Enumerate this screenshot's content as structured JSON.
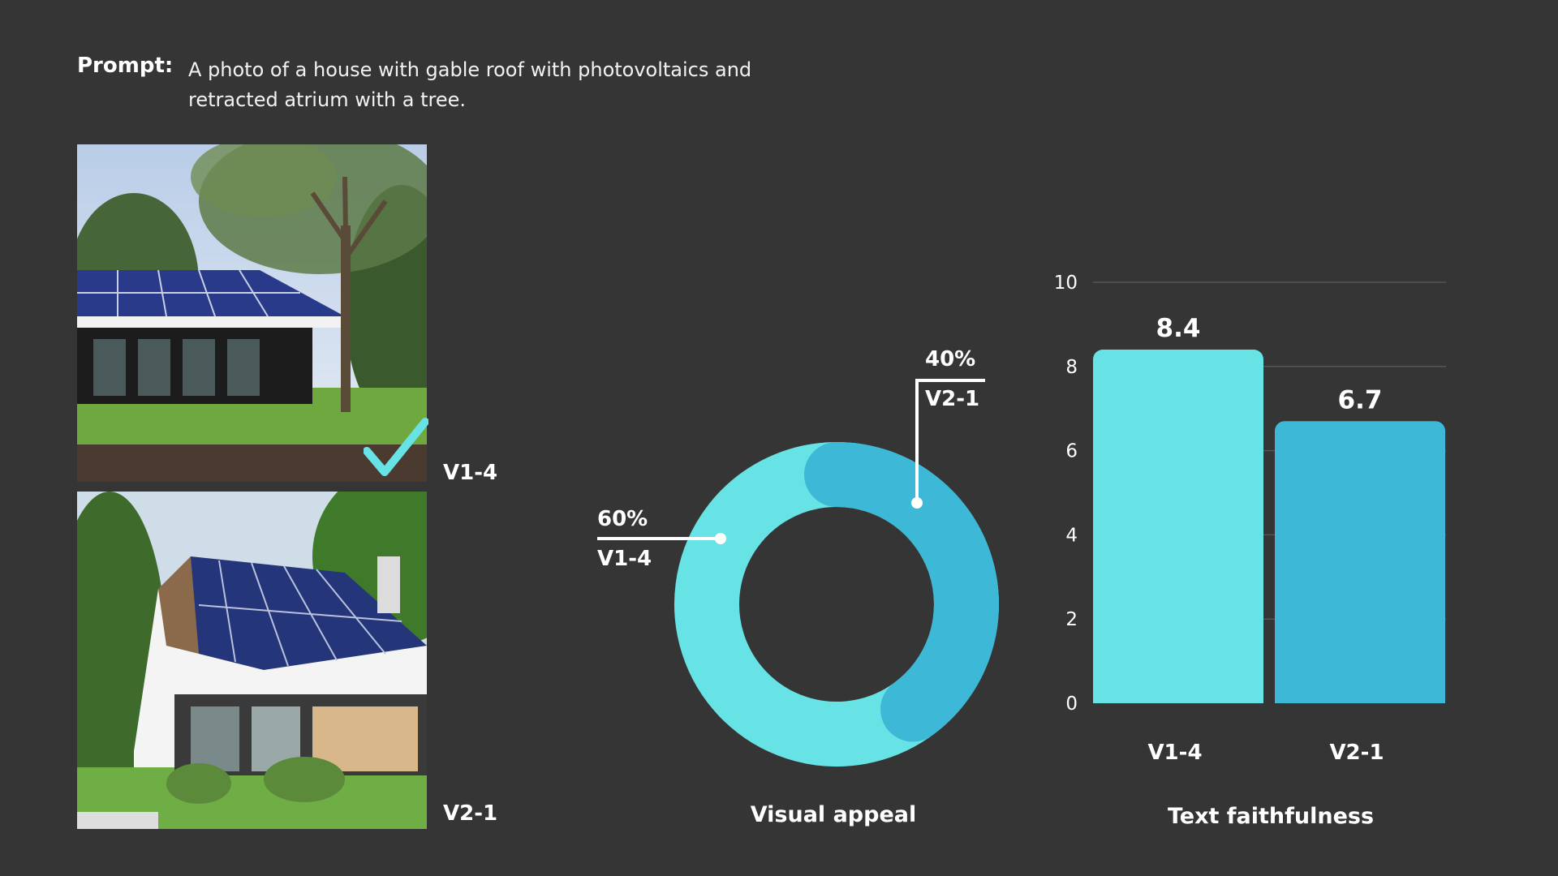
{
  "prompt": {
    "label": "Prompt:",
    "text": "A photo of a house with gable roof with photovoltaics and retracted atrium with a tree."
  },
  "images": [
    {
      "label": "V1-4",
      "selected": true,
      "mark": "checkmark-icon"
    },
    {
      "label": "V2-1",
      "selected": false
    }
  ],
  "colors": {
    "background": "#353535",
    "v1_4": "#67e3e6",
    "v2_1": "#3db8d6",
    "text": "#ffffff"
  },
  "chart_data": [
    {
      "type": "pie",
      "donut": true,
      "title": "Visual appeal",
      "categories": [
        "V1-4",
        "V2-1"
      ],
      "values": [
        60,
        40
      ],
      "labels": [
        "60%",
        "40%"
      ]
    },
    {
      "type": "bar",
      "title": "Text faithfulness",
      "categories": [
        "V1-4",
        "V2-1"
      ],
      "values": [
        8.4,
        6.7
      ],
      "value_labels": [
        "8.4",
        "6.7"
      ],
      "ylim": [
        0,
        10
      ],
      "yticks": [
        "0",
        "2",
        "4",
        "6",
        "8",
        "10"
      ],
      "grid": true
    }
  ]
}
